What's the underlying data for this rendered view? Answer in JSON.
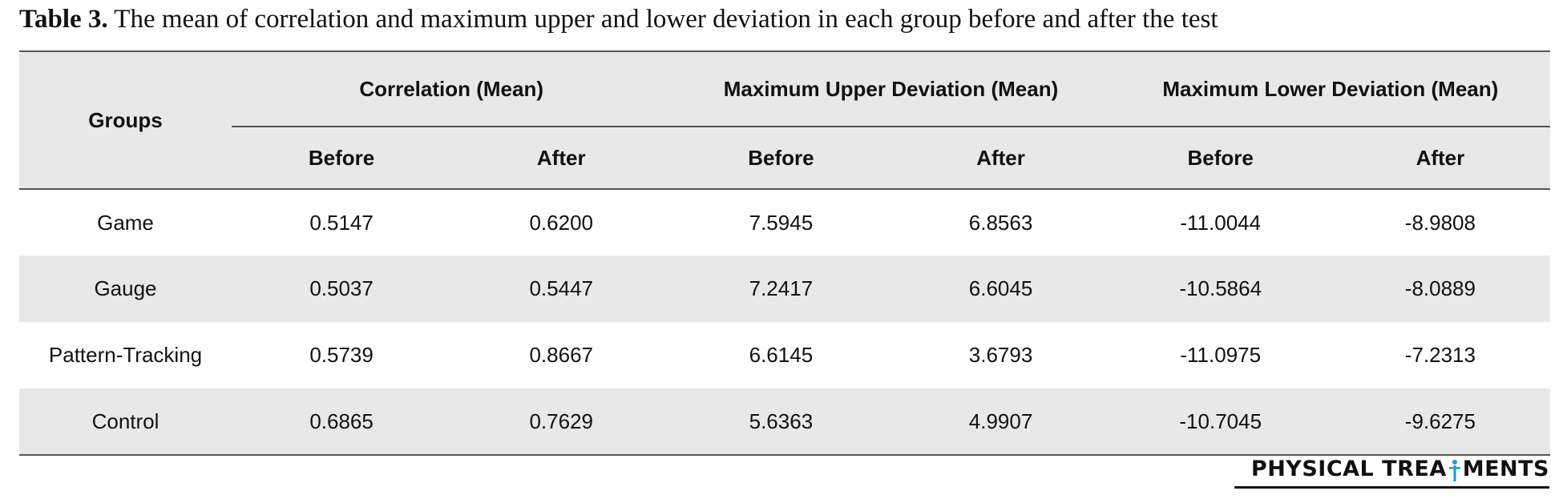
{
  "caption": {
    "label": "Table 3.",
    "text": " The mean of correlation and maximum upper and lower deviation in each group before and after the test"
  },
  "table": {
    "groups_header": "Groups",
    "group_headers": [
      "Correlation (Mean)",
      "Maximum Upper Deviation (Mean)",
      "Maximum Lower Deviation (Mean)"
    ],
    "sub_headers": [
      "Before",
      "After",
      "Before",
      "After",
      "Before",
      "After"
    ],
    "rows": [
      {
        "group": "Game",
        "values": [
          "0.5147",
          "0.6200",
          "7.5945",
          "6.8563",
          "-11.0044",
          "-8.9808"
        ]
      },
      {
        "group": "Gauge",
        "values": [
          "0.5037",
          "0.5447",
          "7.2417",
          "6.6045",
          "-10.5864",
          "-8.0889"
        ]
      },
      {
        "group": "Pattern-Tracking",
        "values": [
          "0.5739",
          "0.8667",
          "6.6145",
          "3.6793",
          "-11.0975",
          "-7.2313"
        ]
      },
      {
        "group": "Control",
        "values": [
          "0.6865",
          "0.7629",
          "5.6363",
          "4.9907",
          "-10.7045",
          "-9.6275"
        ]
      }
    ]
  },
  "brand": {
    "text_before": "PHYSICAL TREA",
    "icon": "person-figure-icon",
    "text_after": "MENTS",
    "accent_color": "#1a9bd7"
  }
}
